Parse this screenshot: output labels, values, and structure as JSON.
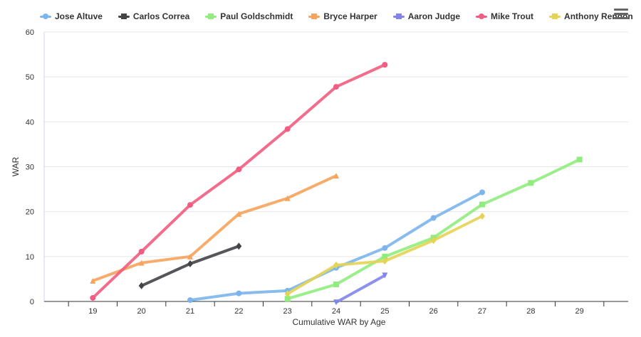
{
  "chart_data": {
    "type": "line",
    "title": "",
    "xlabel": "Cumulative WAR by Age",
    "ylabel": "WAR",
    "x": [
      19,
      20,
      21,
      22,
      23,
      24,
      25,
      26,
      27,
      28,
      29
    ],
    "xlim": [
      18,
      30
    ],
    "ylim": [
      0,
      60
    ],
    "yticks": [
      0,
      10,
      20,
      30,
      40,
      50,
      60
    ],
    "grid": "horizontal",
    "legend_position": "top",
    "series": [
      {
        "name": "Jose Altuve",
        "color": "#7cb5ec",
        "marker": "circle",
        "x": [
          21,
          22,
          23,
          24,
          25,
          26,
          27
        ],
        "y": [
          0.3,
          1.8,
          2.4,
          7.5,
          11.9,
          18.6,
          24.3
        ]
      },
      {
        "name": "Carlos Correa",
        "color": "#434348",
        "marker": "diamond",
        "x": [
          20,
          21,
          22
        ],
        "y": [
          3.5,
          8.4,
          12.3
        ]
      },
      {
        "name": "Paul Goldschmidt",
        "color": "#90ed7d",
        "marker": "square",
        "x": [
          23,
          24,
          25,
          26,
          27,
          28,
          29
        ],
        "y": [
          0.6,
          3.8,
          10.0,
          14.2,
          21.6,
          26.4,
          31.6
        ]
      },
      {
        "name": "Bryce Harper",
        "color": "#f7a35c",
        "marker": "triangle",
        "x": [
          19,
          20,
          21,
          22,
          23,
          24
        ],
        "y": [
          4.6,
          8.6,
          10.0,
          19.5,
          23.0,
          28.0
        ]
      },
      {
        "name": "Aaron Judge",
        "color": "#8085e9",
        "marker": "triangle-down",
        "x": [
          24,
          25
        ],
        "y": [
          -0.2,
          5.8
        ]
      },
      {
        "name": "Mike Trout",
        "color": "#f15c80",
        "marker": "circle",
        "x": [
          19,
          20,
          21,
          22,
          23,
          24,
          25
        ],
        "y": [
          0.8,
          11.1,
          21.5,
          29.4,
          38.4,
          47.8,
          52.7
        ]
      },
      {
        "name": "Anthony Rendon",
        "color": "#e4d354",
        "marker": "diamond",
        "x": [
          23,
          24,
          25,
          26,
          27
        ],
        "y": [
          1.7,
          8.1,
          9.0,
          13.6,
          19.0
        ]
      }
    ]
  }
}
